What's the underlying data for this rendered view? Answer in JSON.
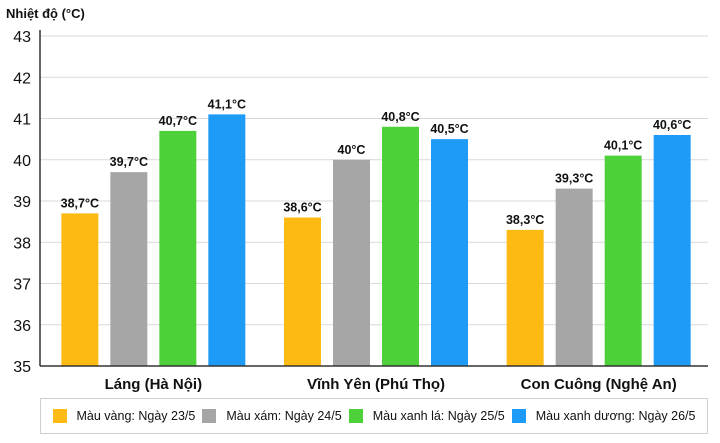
{
  "chart_data": {
    "type": "bar",
    "ylabel": "Nhiệt độ (°C)",
    "ylim": [
      35,
      43
    ],
    "yticks": [
      "35",
      "36",
      "37",
      "38",
      "39",
      "40",
      "41",
      "42",
      "43"
    ],
    "grid": true,
    "categories": [
      "Láng (Hà Nội)",
      "Vĩnh Yên (Phú Thọ)",
      "Con Cuông (Nghệ An)"
    ],
    "series": [
      {
        "name": "Màu vàng: Ngày 23/5",
        "color": "#FDBA13",
        "values": [
          38.7,
          38.6,
          38.3
        ],
        "labels": [
          "38,7°C",
          "38,6°C",
          "38,3°C"
        ]
      },
      {
        "name": "Màu xám: Ngày 24/5",
        "color": "#A6A6A6",
        "values": [
          39.7,
          40.0,
          39.3
        ],
        "labels": [
          "39,7°C",
          "40°C",
          "39,3°C"
        ]
      },
      {
        "name": "Màu xanh lá: Ngày 25/5",
        "color": "#4ED03A",
        "values": [
          40.7,
          40.8,
          40.1
        ],
        "labels": [
          "40,7°C",
          "40,8°C",
          "40,1°C"
        ]
      },
      {
        "name": "Màu xanh dương: Ngày 26/5",
        "color": "#1E9BF6",
        "values": [
          41.1,
          40.5,
          40.6
        ],
        "labels": [
          "41,1°C",
          "40,5°C",
          "40,6°C"
        ]
      }
    ],
    "legend_position": "bottom"
  }
}
